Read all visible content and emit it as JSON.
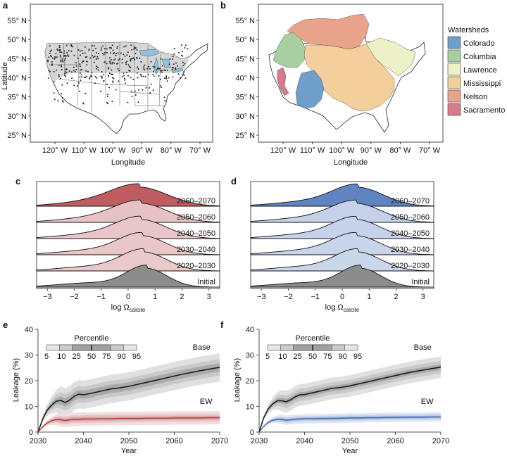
{
  "panel_labels": [
    "a",
    "b",
    "c",
    "d",
    "e",
    "f"
  ],
  "colors": {
    "ew_red": "#b5464a",
    "ew_blue": "#4a72b8",
    "base_gray": "#555555",
    "us_fill": "#d6d6d6",
    "lakes": "#8ec2de",
    "initial": "#8c8c8c"
  },
  "chart_data": [
    {
      "panel": "a",
      "type": "map",
      "xlabel": "Longitude",
      "ylabel": "Latitude",
      "x_ticks": [
        "120° W",
        "110° W",
        "100° W",
        "90° W",
        "80° W",
        "70° W"
      ],
      "y_ticks": [
        "25° N",
        "30° N",
        "35° N",
        "40° N",
        "45° N",
        "50° N",
        "55° N"
      ]
    },
    {
      "panel": "b",
      "type": "map",
      "xlabel": "Longitude",
      "ylabel": "",
      "x_ticks": [
        "120° W",
        "110° W",
        "100° W",
        "90° W",
        "80° W",
        "70° W"
      ],
      "y_ticks": [
        "25° N",
        "30° N",
        "35° N",
        "40° N",
        "45° N",
        "50° N",
        "55° N"
      ],
      "legend_title": "Watersheds",
      "legend_placement": "right",
      "watersheds": [
        {
          "name": "Colorado",
          "color": "#6e9ec9"
        },
        {
          "name": "Columbia",
          "color": "#a8cfa0"
        },
        {
          "name": "Lawrence",
          "color": "#eef1c6"
        },
        {
          "name": "Mississippi",
          "color": "#f4cf9c"
        },
        {
          "name": "Nelson",
          "color": "#e8a38a"
        },
        {
          "name": "Sacramento",
          "color": "#d9798a"
        }
      ]
    },
    {
      "panel": "c",
      "type": "area",
      "color": "#b5464a",
      "xlabel_prefix": "log Ω",
      "xlabel_sub": "calcite",
      "x_ticks": [
        -3,
        -2,
        -1,
        0,
        1,
        2,
        3
      ],
      "xlim": [
        -3.4,
        3.4
      ],
      "ridges": [
        {
          "label": "2060–2070",
          "mode": 0.45,
          "spread": 1.05
        },
        {
          "label": "2050–2060",
          "mode": 0.5,
          "spread": 1.0
        },
        {
          "label": "2040–2050",
          "mode": 0.5,
          "spread": 0.95
        },
        {
          "label": "2030–2040",
          "mode": 0.55,
          "spread": 0.9
        },
        {
          "label": "2020–2030",
          "mode": 0.6,
          "spread": 0.85
        },
        {
          "label": "Initial",
          "mode": 0.7,
          "spread": 0.75
        }
      ]
    },
    {
      "panel": "d",
      "type": "area",
      "color": "#4a72b8",
      "xlabel_prefix": "log Ω",
      "xlabel_sub": "calcite",
      "x_ticks": [
        -3,
        -2,
        -1,
        0,
        1,
        2,
        3
      ],
      "xlim": [
        -3.4,
        3.4
      ],
      "ridges": [
        {
          "label": "2060–2070",
          "mode": 0.6,
          "spread": 0.95
        },
        {
          "label": "2050–2060",
          "mode": 0.55,
          "spread": 0.95
        },
        {
          "label": "2040–2050",
          "mode": 0.55,
          "spread": 0.9
        },
        {
          "label": "2030–2040",
          "mode": 0.55,
          "spread": 0.9
        },
        {
          "label": "2020–2030",
          "mode": 0.6,
          "spread": 0.85
        },
        {
          "label": "Initial",
          "mode": 0.7,
          "spread": 0.75
        }
      ]
    },
    {
      "panel": "e",
      "type": "line",
      "xlabel": "Year",
      "ylabel": "Leakage (%)",
      "xlim": [
        2030,
        2070
      ],
      "ylim": [
        0,
        40
      ],
      "x_ticks": [
        2030,
        2040,
        2050,
        2060,
        2070
      ],
      "y_ticks": [
        0,
        10,
        20,
        30,
        40
      ],
      "percentile_title": "Percentile",
      "percentile_ticks": [
        "5",
        "10",
        "25",
        "50",
        "75",
        "90",
        "95"
      ],
      "series": [
        {
          "name": "Base",
          "color": "#1a1a1a",
          "x": [
            2030,
            2031,
            2032,
            2033,
            2034,
            2035,
            2036,
            2037,
            2038,
            2039,
            2040,
            2042,
            2044,
            2046,
            2048,
            2050,
            2052,
            2054,
            2056,
            2058,
            2060,
            2062,
            2064,
            2066,
            2068,
            2070
          ],
          "y": [
            0,
            5,
            8.5,
            10.5,
            12,
            12.3,
            11.5,
            12.5,
            14,
            14.8,
            14.5,
            15.2,
            16,
            16.8,
            17.2,
            17.8,
            18.6,
            19.4,
            20.2,
            21,
            21.8,
            22.6,
            23.3,
            24,
            24.6,
            25.2
          ],
          "band95": 5.5,
          "band75": 3.2,
          "band50": 1.6
        },
        {
          "name": "EW",
          "color": "#b5464a",
          "x": [
            2030,
            2031,
            2032,
            2033,
            2034,
            2035,
            2036,
            2037,
            2038,
            2039,
            2040,
            2042,
            2044,
            2046,
            2048,
            2050,
            2052,
            2054,
            2056,
            2058,
            2060,
            2062,
            2064,
            2066,
            2068,
            2070
          ],
          "y": [
            0,
            2,
            3.5,
            4.4,
            4.9,
            4.8,
            4.5,
            4.8,
            5,
            5,
            5.1,
            5.1,
            5.2,
            5.2,
            5.3,
            5.3,
            5.3,
            5.4,
            5.4,
            5.4,
            5.5,
            5.5,
            5.5,
            5.5,
            5.6,
            5.6
          ],
          "band95": 2.6,
          "band75": 1.5,
          "band50": 0.7
        }
      ]
    },
    {
      "panel": "f",
      "type": "line",
      "xlabel": "Year",
      "ylabel": "Leakage (%)",
      "xlim": [
        2030,
        2070
      ],
      "ylim": [
        0,
        40
      ],
      "x_ticks": [
        2030,
        2040,
        2050,
        2060,
        2070
      ],
      "y_ticks": [
        0,
        10,
        20,
        30,
        40
      ],
      "percentile_title": "Percentile",
      "percentile_ticks": [
        "5",
        "10",
        "25",
        "50",
        "75",
        "90",
        "95"
      ],
      "series": [
        {
          "name": "Base",
          "color": "#1a1a1a",
          "x": [
            2030,
            2031,
            2032,
            2033,
            2034,
            2035,
            2036,
            2037,
            2038,
            2039,
            2040,
            2042,
            2044,
            2046,
            2048,
            2050,
            2052,
            2054,
            2056,
            2058,
            2060,
            2062,
            2064,
            2066,
            2068,
            2070
          ],
          "y": [
            0,
            5.5,
            9,
            11,
            12.2,
            12.2,
            11.8,
            12.6,
            13.8,
            14.5,
            14.6,
            15.4,
            16.2,
            17,
            17.4,
            18,
            18.8,
            19.6,
            20.4,
            21.2,
            22,
            22.8,
            23.5,
            24.1,
            24.7,
            25.3
          ],
          "band95": 4.2,
          "band75": 2.4,
          "band50": 1.1
        },
        {
          "name": "EW",
          "color": "#4a72b8",
          "x": [
            2030,
            2031,
            2032,
            2033,
            2034,
            2035,
            2036,
            2037,
            2038,
            2039,
            2040,
            2042,
            2044,
            2046,
            2048,
            2050,
            2052,
            2054,
            2056,
            2058,
            2060,
            2062,
            2064,
            2066,
            2068,
            2070
          ],
          "y": [
            0,
            2.2,
            3.8,
            4.6,
            5,
            4.9,
            4.6,
            4.8,
            5,
            5.1,
            5.2,
            5.2,
            5.3,
            5.3,
            5.4,
            5.5,
            5.5,
            5.6,
            5.6,
            5.7,
            5.7,
            5.8,
            5.8,
            5.8,
            5.9,
            5.9
          ],
          "band95": 1.8,
          "band75": 1.0,
          "band50": 0.5
        }
      ]
    }
  ]
}
